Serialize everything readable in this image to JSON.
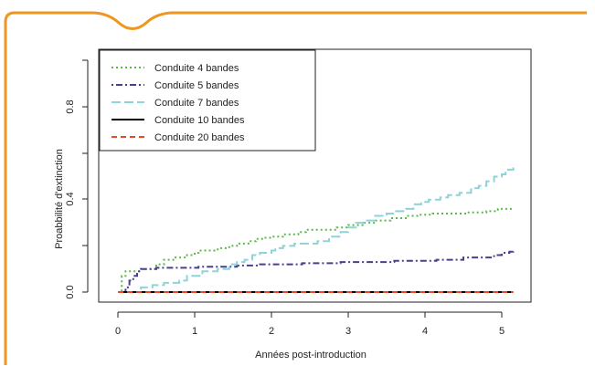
{
  "colors": {
    "frame": "#F0961E",
    "axis": "#222222",
    "s4": "#5DB84A",
    "s5": "#4B3F8C",
    "s7": "#8ED3DA",
    "s10": "#000000",
    "s20": "#E8492B"
  },
  "chart_data": {
    "type": "line",
    "title": "",
    "xlabel": "Années post-introduction",
    "ylabel": "Proabbilité d'extinction",
    "xlim": [
      0,
      5.2
    ],
    "ylim": [
      0,
      1.0
    ],
    "x_ticks": [
      "0",
      "1",
      "2",
      "3",
      "4",
      "5"
    ],
    "y_ticks": [
      "0.0",
      "0.4",
      "0.8"
    ],
    "grid": false,
    "legend_position": "top-left",
    "step": true,
    "series": [
      {
        "name": "Conduite 4 bandes",
        "color": "#5DB84A",
        "dash": "dotted",
        "x": [
          0,
          0.05,
          0.1,
          0.2,
          0.3,
          0.5,
          0.6,
          0.75,
          0.9,
          1.0,
          1.05,
          1.3,
          1.45,
          1.55,
          1.7,
          1.8,
          1.9,
          2.0,
          2.15,
          2.35,
          2.45,
          2.75,
          2.85,
          3.0,
          3.2,
          3.35,
          3.55,
          3.75,
          3.9,
          4.1,
          4.55,
          4.8,
          4.95,
          5.15
        ],
        "y": [
          0.0,
          0.07,
          0.09,
          0.09,
          0.1,
          0.12,
          0.14,
          0.15,
          0.16,
          0.17,
          0.18,
          0.19,
          0.2,
          0.21,
          0.22,
          0.23,
          0.235,
          0.24,
          0.25,
          0.26,
          0.27,
          0.27,
          0.28,
          0.29,
          0.3,
          0.31,
          0.32,
          0.33,
          0.335,
          0.34,
          0.345,
          0.35,
          0.36,
          0.36
        ]
      },
      {
        "name": "Conduite 5 bandes",
        "color": "#4B3F8C",
        "dash": "dotdash",
        "x": [
          0,
          0.1,
          0.15,
          0.2,
          0.25,
          0.3,
          0.5,
          1.05,
          1.55,
          1.85,
          2.4,
          2.9,
          3.6,
          4.15,
          4.5,
          4.9,
          5.0,
          5.1,
          5.15
        ],
        "y": [
          0.0,
          0.02,
          0.05,
          0.07,
          0.09,
          0.1,
          0.105,
          0.11,
          0.115,
          0.12,
          0.125,
          0.13,
          0.135,
          0.14,
          0.15,
          0.16,
          0.17,
          0.175,
          0.18
        ]
      },
      {
        "name": "Conduite 7 bandes",
        "color": "#8ED3DA",
        "dash": "longdash",
        "x": [
          0,
          0.3,
          0.45,
          0.6,
          0.8,
          0.9,
          1.1,
          1.3,
          1.45,
          1.55,
          1.65,
          1.75,
          1.85,
          2.0,
          2.05,
          2.15,
          2.3,
          2.6,
          2.75,
          2.9,
          3.0,
          3.1,
          3.2,
          3.35,
          3.5,
          3.6,
          3.75,
          3.85,
          3.95,
          4.05,
          4.2,
          4.3,
          4.45,
          4.6,
          4.7,
          4.8,
          4.9,
          5.0,
          5.05,
          5.15
        ],
        "y": [
          0.0,
          0.02,
          0.03,
          0.04,
          0.05,
          0.07,
          0.09,
          0.1,
          0.12,
          0.13,
          0.14,
          0.16,
          0.17,
          0.18,
          0.19,
          0.2,
          0.21,
          0.22,
          0.24,
          0.26,
          0.28,
          0.3,
          0.31,
          0.33,
          0.34,
          0.35,
          0.36,
          0.38,
          0.39,
          0.4,
          0.41,
          0.42,
          0.43,
          0.45,
          0.46,
          0.48,
          0.5,
          0.51,
          0.53,
          0.54
        ]
      },
      {
        "name": "Conduite 10 bandes",
        "color": "#000000",
        "dash": "solid",
        "x": [
          0,
          5.15
        ],
        "y": [
          0.0,
          0.0
        ]
      },
      {
        "name": "Conduite 20 bandes",
        "color": "#E8492B",
        "dash": "dashed",
        "x": [
          0,
          5.15
        ],
        "y": [
          0.0,
          0.0
        ]
      }
    ]
  }
}
